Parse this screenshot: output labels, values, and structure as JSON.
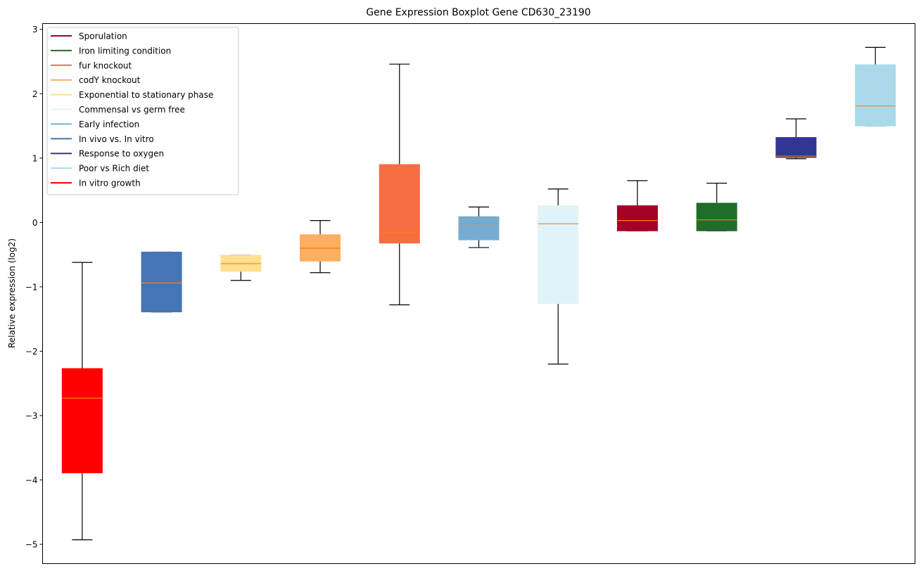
{
  "chart_data": {
    "type": "boxplot",
    "title": "Gene Expression Boxplot Gene CD630_23190",
    "xlabel": "",
    "ylabel": "Relative expression (log2)",
    "ylim": [
      -5.3,
      3.09
    ],
    "yticks": [
      -5,
      -4,
      -3,
      -2,
      -1,
      0,
      1,
      2,
      3
    ],
    "ytick_labels": [
      "−5",
      "−4",
      "−3",
      "−2",
      "−1",
      "0",
      "1",
      "2",
      "3"
    ],
    "grid": false,
    "legend_position": "top-left",
    "median_color": "#ff7f0e",
    "whisker_color": "#000000",
    "boxes": [
      {
        "name": "In vitro growth",
        "color": "#ff0000",
        "whisker_low": -4.93,
        "q1": -3.89,
        "median": -2.73,
        "q3": -2.27,
        "whisker_high": -0.62
      },
      {
        "name": "In vivo vs. In vitro",
        "color": "#4575b4",
        "whisker_low": -1.39,
        "q1": -1.39,
        "median": -0.94,
        "q3": -0.46,
        "whisker_high": -0.46
      },
      {
        "name": "Exponential to stationary phase",
        "color": "#fee090",
        "whisker_low": -0.9,
        "q1": -0.76,
        "median": -0.64,
        "q3": -0.51,
        "whisker_high": -0.51
      },
      {
        "name": "codY knockout",
        "color": "#fdae61",
        "whisker_low": -0.78,
        "q1": -0.6,
        "median": -0.4,
        "q3": -0.19,
        "whisker_high": 0.03
      },
      {
        "name": "fur knockout",
        "color": "#f46d43",
        "whisker_low": -1.28,
        "q1": -0.32,
        "median": -0.16,
        "q3": 0.9,
        "whisker_high": 2.46
      },
      {
        "name": "Early infection",
        "color": "#74add1",
        "whisker_low": -0.39,
        "q1": -0.27,
        "median": -0.02,
        "q3": 0.09,
        "whisker_high": 0.24
      },
      {
        "name": "Commensal vs germ free",
        "color": "#e0f3f8",
        "whisker_low": -2.2,
        "q1": -1.26,
        "median": -0.02,
        "q3": 0.26,
        "whisker_high": 0.52
      },
      {
        "name": "Sporulation",
        "color": "#a50026",
        "whisker_low": -0.13,
        "q1": -0.13,
        "median": 0.03,
        "q3": 0.26,
        "whisker_high": 0.65
      },
      {
        "name": "Iron limiting condition",
        "color": "#236b2a",
        "whisker_low": -0.13,
        "q1": -0.13,
        "median": 0.04,
        "q3": 0.3,
        "whisker_high": 0.61
      },
      {
        "name": "Response to oxygen",
        "color": "#313695",
        "whisker_low": 0.99,
        "q1": 1.01,
        "median": 1.03,
        "q3": 1.32,
        "whisker_high": 1.61
      },
      {
        "name": "Poor vs Rich diet",
        "color": "#abd9e9",
        "whisker_low": 1.5,
        "q1": 1.5,
        "median": 1.81,
        "q3": 2.45,
        "whisker_high": 2.72
      }
    ],
    "legend": [
      {
        "label": "Sporulation",
        "color": "#a50026"
      },
      {
        "label": "Iron limiting condition",
        "color": "#236b2a"
      },
      {
        "label": "fur knockout",
        "color": "#f46d43"
      },
      {
        "label": "codY knockout",
        "color": "#fdae61"
      },
      {
        "label": "Exponential to stationary phase",
        "color": "#fee090"
      },
      {
        "label": "Commensal vs germ free",
        "color": "#e0f3f8"
      },
      {
        "label": "Early infection",
        "color": "#74add1"
      },
      {
        "label": "In vivo vs. In vitro",
        "color": "#4575b4"
      },
      {
        "label": "Response to oxygen",
        "color": "#313695"
      },
      {
        "label": "Poor vs Rich diet",
        "color": "#abd9e9"
      },
      {
        "label": "In vitro growth",
        "color": "#ff0000"
      }
    ]
  }
}
